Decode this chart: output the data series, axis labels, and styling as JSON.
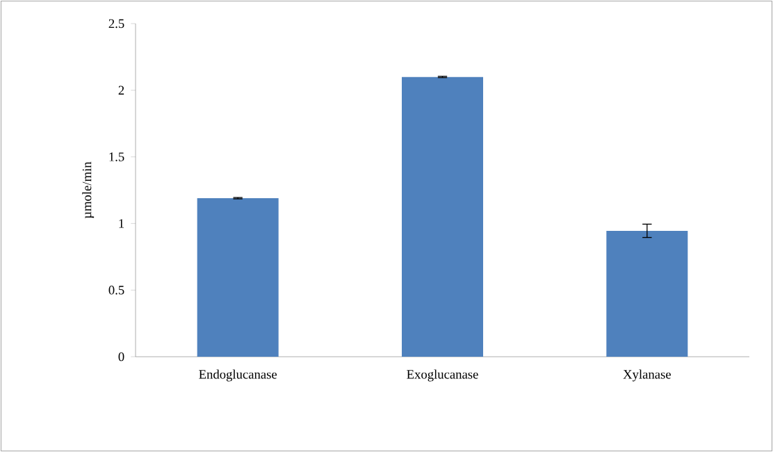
{
  "chart_data": {
    "type": "bar",
    "ylabel": "µmole/min",
    "categories": [
      "Endoglucanase",
      "Exoglucanase",
      "Xylanase"
    ],
    "values": [
      1.19,
      2.1,
      0.945
    ],
    "errors": [
      0.005,
      0.005,
      0.05
    ],
    "color": "#4f81bd",
    "ylim": [
      0,
      2.5
    ],
    "yticks": [
      0,
      0.5,
      1,
      1.5,
      2,
      2.5
    ],
    "grid": false
  }
}
